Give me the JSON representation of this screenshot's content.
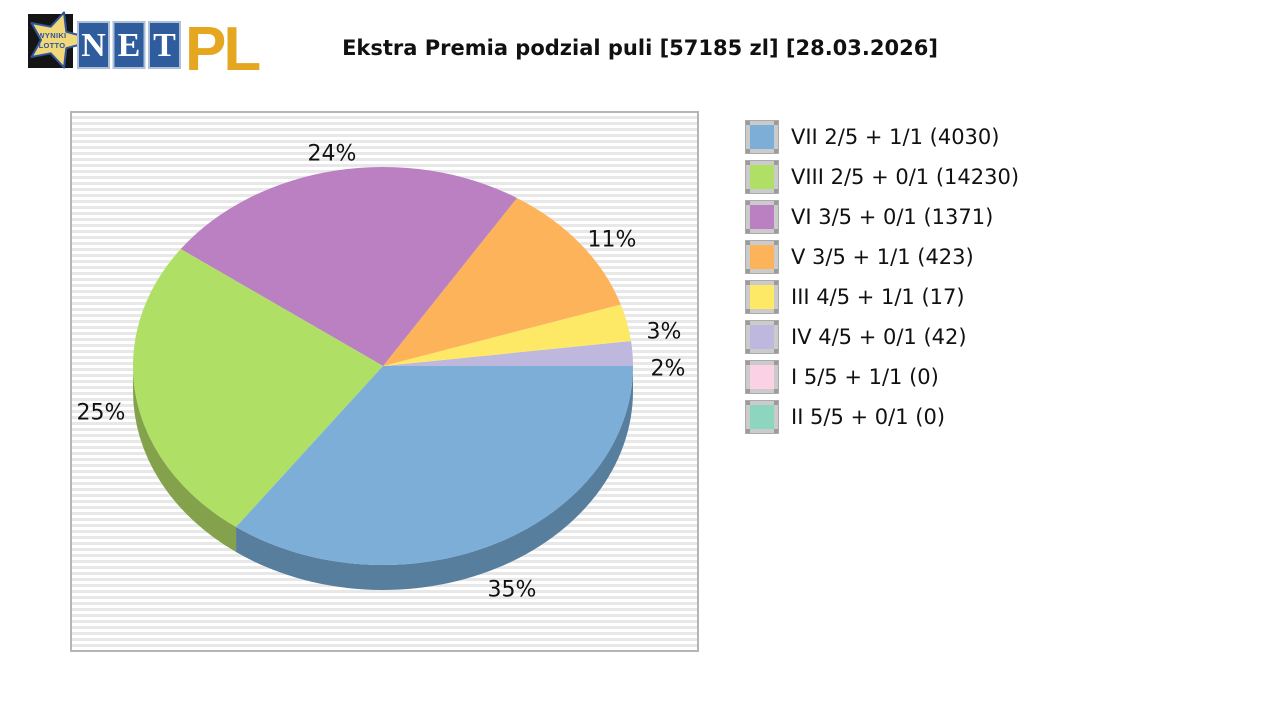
{
  "logo": {
    "star_line1": "WYNIKI",
    "star_line2": "LOTTO",
    "net_letters": [
      "N",
      "E",
      "T"
    ],
    "suffix": "PL"
  },
  "title": "Ekstra Premia podzial puli [57185 zl] [28.03.2026]",
  "chart_data": {
    "type": "pie",
    "style": "3d",
    "title": "Ekstra Premia podzial puli [57185 zl] [28.03.2026]",
    "pool": "57185 zl",
    "date": "28.03.2026",
    "legend_position": "right",
    "direction": "counterclockwise",
    "start_angle_deg": 0,
    "legend": [
      {
        "label": "VII 2/5 + 1/1 (4030)",
        "count": 4030,
        "color": "#7DAED7"
      },
      {
        "label": "VIII 2/5 + 0/1 (14230)",
        "count": 14230,
        "color": "#AFE065"
      },
      {
        "label": "VI 3/5 + 0/1 (1371)",
        "count": 1371,
        "color": "#BA80C2"
      },
      {
        "label": "V 3/5 + 1/1 (423)",
        "count": 423,
        "color": "#FDB35A"
      },
      {
        "label": "III 4/5 + 1/1 (17)",
        "count": 17,
        "color": "#FEE966"
      },
      {
        "label": "IV 4/5 + 0/1 (42)",
        "count": 42,
        "color": "#BEB8DE"
      },
      {
        "label": "I 5/5 + 1/1 (0)",
        "count": 0,
        "color": "#FBD2E5"
      },
      {
        "label": "II 5/5 + 0/1 (0)",
        "count": 0,
        "color": "#8ED5C0"
      }
    ],
    "slices": [
      {
        "name": "IV 4/5 + 0/1",
        "percent": 2,
        "color": "#BEB8DE"
      },
      {
        "name": "III 4/5 + 1/1",
        "percent": 3,
        "color": "#FEE966"
      },
      {
        "name": "V 3/5 + 1/1",
        "percent": 11,
        "color": "#FDB35A"
      },
      {
        "name": "VI 3/5 + 0/1",
        "percent": 24,
        "color": "#BA80C2"
      },
      {
        "name": "VIII 2/5 + 0/1",
        "percent": 25,
        "color": "#AFE065",
        "side_color": "#84A24B"
      },
      {
        "name": "VII 2/5 + 1/1",
        "percent": 35,
        "color": "#7DAED7",
        "side_color": "#587E9E"
      }
    ]
  }
}
